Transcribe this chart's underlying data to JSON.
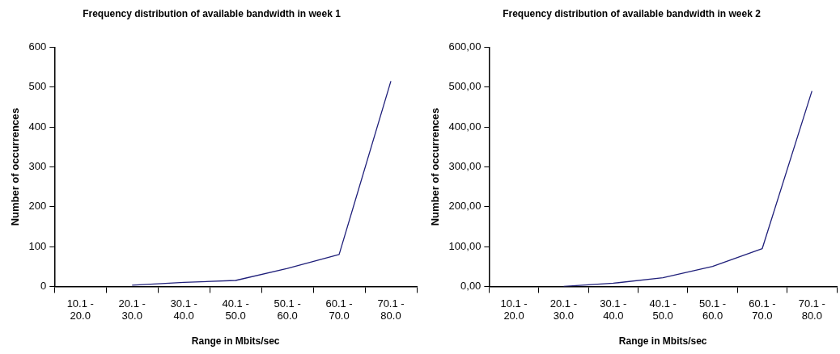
{
  "chart_data": [
    {
      "type": "line",
      "title": "Frequency distribution of available bandwidth in week 1",
      "xlabel": "Range in Mbits/sec",
      "ylabel": "Number of occurrences",
      "categories": [
        "10.1 - 20.0",
        "20.1 - 30.0",
        "30.1 - 40.0",
        "40.1 - 50.0",
        "50.1 - 60.0",
        "60.1 - 70.0",
        "70.1 - 80.0"
      ],
      "series": [
        {
          "color": "#1f1f7a",
          "values": [
            null,
            3,
            10,
            15,
            45,
            80,
            515
          ]
        }
      ],
      "ylim": [
        0,
        600
      ],
      "yticks": [
        0,
        100,
        200,
        300,
        400,
        500,
        600
      ],
      "grid": false,
      "legend": false,
      "marker": "none",
      "line_style": "solid"
    },
    {
      "type": "line",
      "title": "Frequency distribution of available bandwidth in week 2",
      "xlabel": "Range in Mbits/sec",
      "ylabel": "Number of occurrences",
      "categories": [
        "10.1 - 20.0",
        "20.1 - 30.0",
        "30.1 - 40.0",
        "40.1 - 50.0",
        "50.1 - 60.0",
        "60.1 - 70.0",
        "70.1 - 80.0"
      ],
      "series": [
        {
          "color": "#1f1f7a",
          "values": [
            null,
            0,
            8,
            22,
            50,
            95,
            490
          ]
        }
      ],
      "ylim": [
        0,
        600
      ],
      "yticks": [
        {
          "value": 0,
          "label": "0,00"
        },
        {
          "value": 100,
          "label": "100,00"
        },
        {
          "value": 200,
          "label": "200,00"
        },
        {
          "value": 300,
          "label": "300,00"
        },
        {
          "value": 400,
          "label": "400,00"
        },
        {
          "value": 500,
          "label": "500,00"
        },
        {
          "value": 600,
          "label": "600,00"
        }
      ],
      "grid": false,
      "legend": false,
      "marker": "none",
      "line_style": "solid"
    }
  ]
}
